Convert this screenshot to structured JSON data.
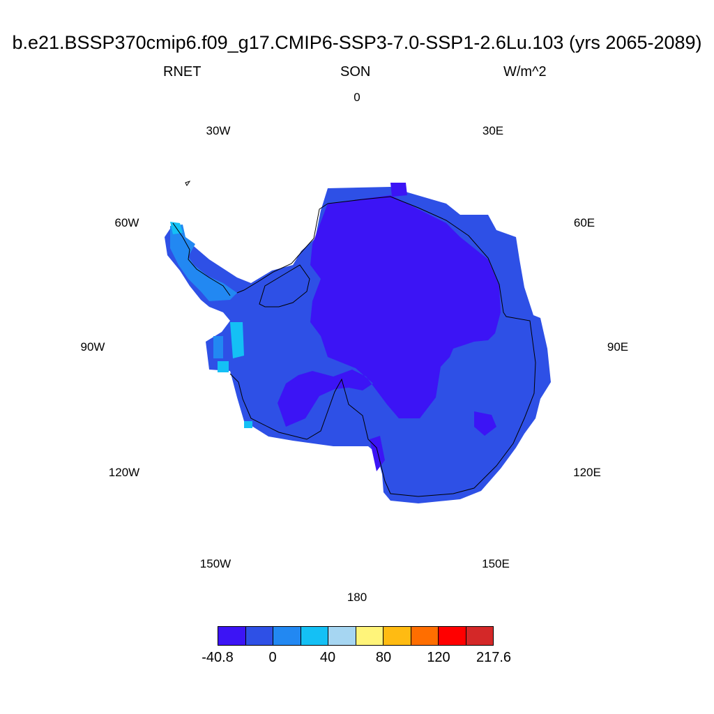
{
  "title": "b.e21.BSSP370cmip6.f09_g17.CMIP6-SSP3-7.0-SSP1-2.6Lu.103 (yrs 2065-2089)",
  "variable": "RNET",
  "season": "SON",
  "units": "W/m^2",
  "longitude_labels": {
    "lon_0": "0",
    "lon_30e": "30E",
    "lon_60e": "60E",
    "lon_90e": "90E",
    "lon_120e": "120E",
    "lon_150e": "150E",
    "lon_180": "180",
    "lon_150w": "150W",
    "lon_120w": "120W",
    "lon_90w": "90W",
    "lon_60w": "60W",
    "lon_30w": "30W"
  },
  "colorbar": {
    "colors": [
      "#3c14f5",
      "#2e50e6",
      "#2288f2",
      "#14c0f5",
      "#a6d6f2",
      "#fff47a",
      "#ffbb12",
      "#ff6e00",
      "#ff0000",
      "#d42828"
    ],
    "labels": [
      "-40.8",
      "0",
      "40",
      "80",
      "120",
      "217.6"
    ]
  },
  "map": {
    "projection": "south polar stereographic",
    "region": "Antarctica",
    "dominant_colors": [
      "#3c14f5",
      "#2e50e6",
      "#2288f2",
      "#14c0f5"
    ]
  }
}
